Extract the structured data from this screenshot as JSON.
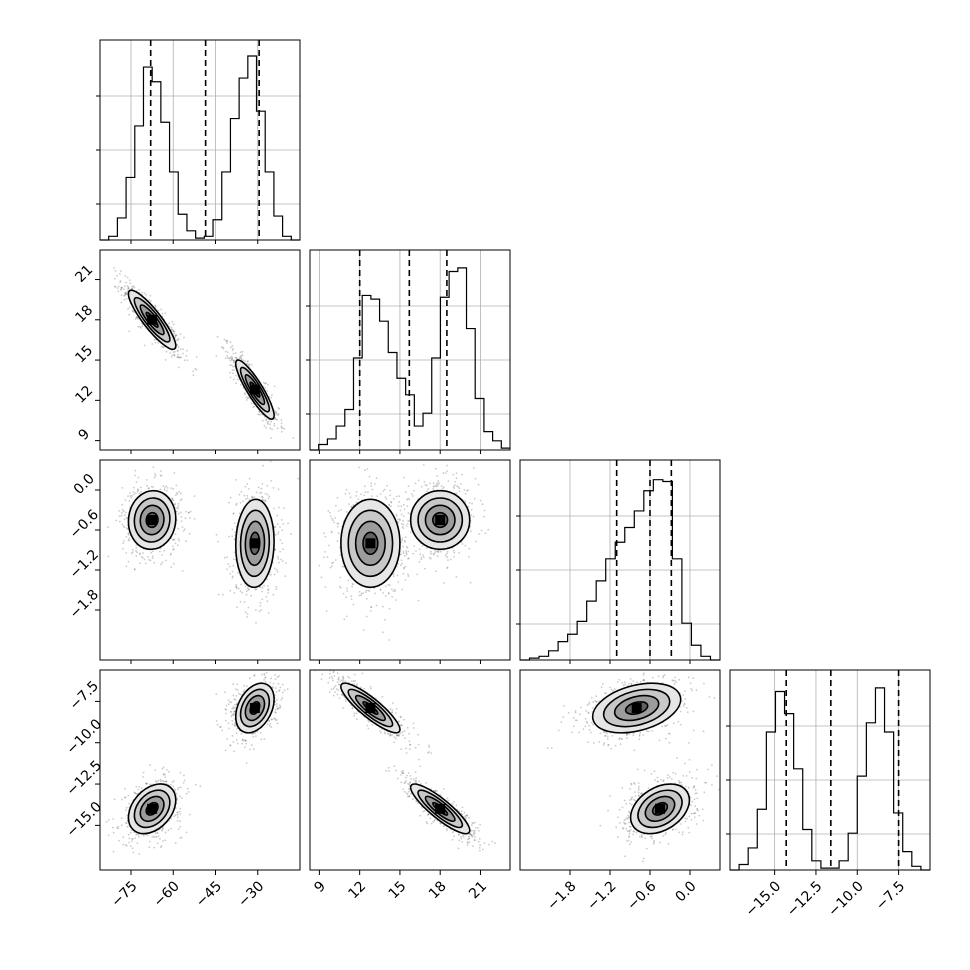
{
  "chart_data": {
    "type": "corner",
    "parameters": [
      {
        "range": [
          -86,
          -15
        ],
        "ticks": [
          -75,
          -60,
          -45,
          -30
        ],
        "tick_labels": [
          "−75",
          "−60",
          "−45",
          "−30"
        ],
        "quantiles": [
          -68,
          -48.5,
          -29.5
        ],
        "hist": [
          0,
          0.02,
          0.12,
          0.34,
          0.62,
          0.94,
          0.86,
          0.64,
          0.37,
          0.14,
          0.05,
          0.01,
          0.02,
          0.11,
          0.37,
          0.66,
          0.88,
          1.0,
          0.7,
          0.37,
          0.13,
          0.02,
          0
        ]
      },
      {
        "range": [
          8.3,
          23.2
        ],
        "ticks": [
          9,
          12,
          15,
          18,
          21
        ],
        "tick_labels": [
          "9",
          "12",
          "15",
          "18",
          "21"
        ],
        "quantiles": [
          12.0,
          15.7,
          18.5
        ],
        "hist": [
          0,
          0.03,
          0.06,
          0.13,
          0.22,
          0.5,
          0.84,
          0.82,
          0.7,
          0.53,
          0.39,
          0.3,
          0.13,
          0.2,
          0.5,
          0.83,
          0.97,
          0.99,
          0.66,
          0.28,
          0.1,
          0.05,
          0.01
        ]
      },
      {
        "range": [
          -2.55,
          0.45
        ],
        "ticks": [
          -1.8,
          -1.2,
          -0.6,
          0.0
        ],
        "tick_labels": [
          "−1.8",
          "−1.2",
          "−0.6",
          "0.0"
        ],
        "quantiles": [
          -1.1,
          -0.6,
          -0.28
        ],
        "hist": [
          0,
          0.01,
          0.02,
          0.05,
          0.1,
          0.14,
          0.21,
          0.32,
          0.43,
          0.55,
          0.64,
          0.72,
          0.81,
          0.92,
          0.98,
          0.97,
          0.55,
          0.2,
          0.08,
          0.02,
          0
        ]
      },
      {
        "range": [
          -17.7,
          -5.6
        ],
        "ticks": [
          -15.0,
          -12.5,
          -10.0,
          -7.5
        ],
        "tick_labels": [
          "−15.0",
          "−12.5",
          "−10.0",
          "−7.5"
        ],
        "quantiles": [
          -14.3,
          -11.6,
          -7.5
        ],
        "hist": [
          0,
          0.03,
          0.12,
          0.33,
          0.75,
          0.97,
          0.85,
          0.55,
          0.22,
          0.05,
          0.01,
          0.01,
          0.05,
          0.2,
          0.51,
          0.8,
          0.99,
          0.75,
          0.31,
          0.1,
          0.02,
          0
        ]
      }
    ],
    "modes": [
      {
        "mean": [
          -67.5,
          18.0,
          -0.45,
          -14.0
        ],
        "sd": [
          4.2,
          1.1,
          0.22,
          0.75
        ]
      },
      {
        "mean": [
          -31.0,
          12.8,
          -0.8,
          -7.9
        ],
        "sd": [
          3.4,
          1.1,
          0.33,
          0.75
        ]
      }
    ],
    "correlations": {
      "0-1": -0.88,
      "0-2": 0.05,
      "0-3": 0.35,
      "1-2": 0.0,
      "1-3": -0.87,
      "2-3": 0.35
    },
    "contour_levels_sigma": [
      0.5,
      1.0,
      1.5,
      2.0
    ],
    "grid": true
  }
}
